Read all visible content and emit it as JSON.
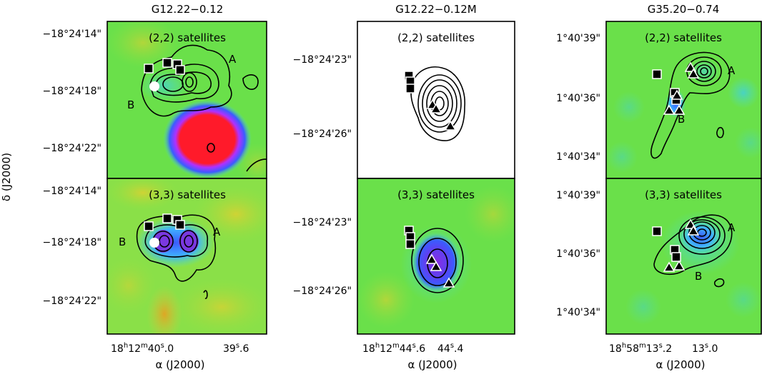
{
  "figure": {
    "y_axis_label": "δ (J2000)",
    "x_axis_label": "α (J2000)",
    "columns": [
      {
        "title": "G12.22−0.12",
        "y_ticks_top": [
          "−18°24'14\"",
          "−18°24'18\"",
          "−18°24'22\""
        ],
        "y_ticks_bottom": [
          "−18°24'14\"",
          "−18°24'18\"",
          "−18°24'22\""
        ],
        "x_ticks": [
          "18h12m40s.0 ",
          "39s.6"
        ],
        "x_tick_main": "18",
        "x_tick_h": "h",
        "x_tick_mid": "12",
        "x_tick_m": "m",
        "x_tick_sec1": "40",
        "x_tick_s1": "s",
        "x_tick_frac1": ".0",
        "x_tick_sec2": "39",
        "x_tick_s2": "s",
        "x_tick_frac2": ".6",
        "panel_top_label": "(2,2)  satellites",
        "panel_bottom_label": "(3,3)  satellites",
        "top_markers": [
          "A",
          "B"
        ],
        "bottom_markers": [
          "A",
          "B"
        ]
      },
      {
        "title": "G12.22−0.12M",
        "y_ticks_top": [
          "−18°24'23\"",
          "−18°24'26\""
        ],
        "y_ticks_bottom": [
          "−18°24'23\"",
          "−18°24'26\""
        ],
        "x_tick_main": "18",
        "x_tick_h": "h",
        "x_tick_mid": "12",
        "x_tick_m": "m",
        "x_tick_sec1": "44",
        "x_tick_s1": "s",
        "x_tick_frac1": ".6",
        "x_tick_sec2": "44",
        "x_tick_s2": "s",
        "x_tick_frac2": ".4",
        "panel_top_label": "(2,2)  satellites",
        "panel_bottom_label": "(3,3)  satellites"
      },
      {
        "title": "G35.20−0.74",
        "y_ticks_top": [
          "1°40'39\"",
          "1°40'36\"",
          "1°40'34\""
        ],
        "y_ticks_bottom": [
          "1°40'39\"",
          "1°40'36\"",
          "1°40'34\""
        ],
        "x_tick_main": "18",
        "x_tick_h": "h",
        "x_tick_mid": "58",
        "x_tick_m": "m",
        "x_tick_sec1": "13",
        "x_tick_s1": "s",
        "x_tick_frac1": ".2",
        "x_tick_sec2": "13",
        "x_tick_s2": "s",
        "x_tick_frac2": ".0",
        "panel_top_label": "(2,2)  satellites",
        "panel_bottom_label": "(3,3)  satellites",
        "top_markers": [
          "A",
          "B"
        ],
        "bottom_markers": [
          "A",
          "B"
        ]
      }
    ]
  },
  "colors": {
    "background_green": "#4fe04a",
    "blue": "#3a5cff",
    "red": "#ff1a2a",
    "purple": "#8a2be2",
    "cyan": "#4fe0c8",
    "yellow": "#d8e03a",
    "orange": "#e8a020"
  }
}
